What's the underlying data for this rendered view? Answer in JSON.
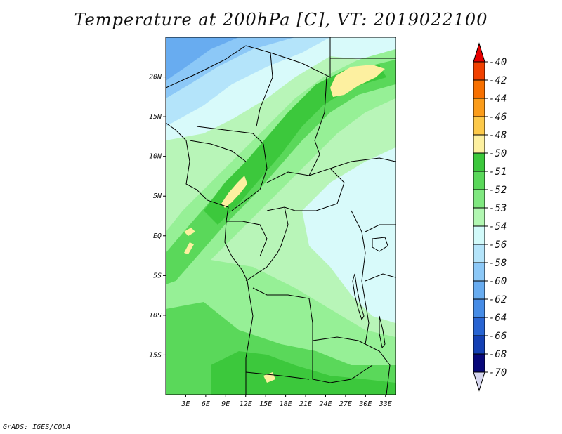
{
  "title": "Temperature at 200hPa [C], VT: 2019022100",
  "credit": "GrADS: IGES/COLA",
  "map": {
    "lat_labels": [
      "20N",
      "15N",
      "10N",
      "5N",
      "EQ",
      "5S",
      "10S",
      "15S"
    ],
    "lat_values": [
      20,
      15,
      10,
      5,
      0,
      -5,
      -10,
      -15
    ],
    "lon_labels": [
      "3E",
      "6E",
      "9E",
      "12E",
      "15E",
      "18E",
      "21E",
      "24E",
      "27E",
      "30E",
      "33E"
    ],
    "lon_values": [
      3,
      6,
      9,
      12,
      15,
      18,
      21,
      24,
      27,
      30,
      33
    ],
    "lon_range": [
      0,
      34.5
    ],
    "lat_range": [
      -20,
      25
    ]
  },
  "colorbar": {
    "labels": [
      "-40",
      "-42",
      "-44",
      "-46",
      "-48",
      "-50",
      "-51",
      "-52",
      "-53",
      "-54",
      "-56",
      "-58",
      "-60",
      "-62",
      "-64",
      "-66",
      "-68",
      "-70"
    ],
    "colors": [
      "#e60000",
      "#f04000",
      "#f77000",
      "#fb9c1a",
      "#fcc94a",
      "#fdf0a0",
      "#3cc83c",
      "#5ad85a",
      "#80e880",
      "#b2f7b2",
      "#d2fafa",
      "#b4e4fa",
      "#8cc8f7",
      "#68acf0",
      "#468ce6",
      "#2864d2",
      "#1440b4",
      "#08087a",
      "#d8d8f0"
    ]
  },
  "colors": {
    "fill_51_52": "#3cc83c",
    "fill_52_53": "#5ad85a",
    "fill_53_54": "#96f096",
    "fill_54_56": "#b8f5b8",
    "fill_56_58": "#d8fafa",
    "fill_58_60": "#b4e4fa",
    "fill_60_62": "#8cc8f7",
    "fill_62_64": "#68acf0",
    "fill_50_51": "#fdf0a0"
  }
}
